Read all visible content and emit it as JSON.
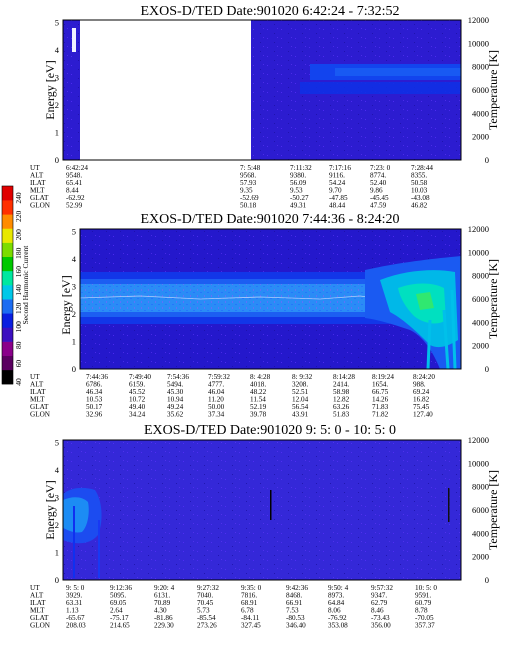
{
  "cb_label": "Second Harmonic Current",
  "cb_ticks": [
    "40",
    "60",
    "80",
    "100",
    "120",
    "140",
    "160",
    "180",
    "200",
    "220",
    "240"
  ],
  "cb_colors": [
    "#000000",
    "#5a0060",
    "#8a008a",
    "#3c10c0",
    "#0a1ee0",
    "#1c6cf2",
    "#00c8e8",
    "#00e8a0",
    "#00c800",
    "#7cdc00",
    "#e8e800",
    "#ff8c00",
    "#ff3000",
    "#e00000"
  ],
  "param_labels": [
    "UT",
    "ALT",
    "ILAT",
    "MLT",
    "GLAT",
    "GLON"
  ],
  "chart_data": [
    {
      "type": "heatmap",
      "title": "EXOS-D/TED   Date:901020  6:42:24 - 7:32:52",
      "ylabel": "Energy [eV]",
      "ylabel2": "Temperature [K]",
      "ylim": [
        0,
        5.1
      ],
      "y2lim": [
        0,
        12000
      ],
      "yticks": [
        "0",
        "1",
        "2",
        "3",
        "4",
        "5"
      ],
      "y2ticks": [
        "0",
        "2000",
        "4000",
        "6000",
        "8000",
        "10000",
        "12000"
      ],
      "bg": "#2c1cd0",
      "data_gap": true,
      "columns": [
        [
          "6:42:24",
          "9548.",
          "65.41",
          "8.44",
          "-62.92",
          "52.99"
        ],
        [
          "7: 5:48",
          "9568.",
          "57.93",
          "9.35",
          "-52.69",
          "50.18"
        ],
        [
          "7:11:32",
          "9380.",
          "56.09",
          "9.53",
          "-50.27",
          "49.31"
        ],
        [
          "7:17:16",
          "9116.",
          "54.24",
          "9.70",
          "-47.85",
          "48.44"
        ],
        [
          "7:23: 0",
          "8774.",
          "52.40",
          "9.86",
          "-45.45",
          "47.59"
        ],
        [
          "7:28:44",
          "8355.",
          "50.58",
          "10.03",
          "-43.08",
          "46.82"
        ]
      ]
    },
    {
      "type": "heatmap",
      "title": "EXOS-D/TED   Date:901020  7:44:36 - 8:24:20",
      "ylabel": "Energy [eV]",
      "ylabel2": "Temperature [K]",
      "ylim": [
        0,
        5.1
      ],
      "y2lim": [
        0,
        12000
      ],
      "yticks": [
        "0",
        "1",
        "2",
        "3",
        "4",
        "5"
      ],
      "y2ticks": [
        "0",
        "2000",
        "4000",
        "6000",
        "8000",
        "10000",
        "12000"
      ],
      "bg": "#2418cc",
      "data_gap": false,
      "columns": [
        [
          "7:44:36",
          "6786.",
          "46.34",
          "10.53",
          "50.17",
          "32.96"
        ],
        [
          "7:49:40",
          "6159.",
          "45.52",
          "10.72",
          "49.40",
          "34.24"
        ],
        [
          "7:54:36",
          "5494.",
          "45.30",
          "10.94",
          "49.24",
          "35.62"
        ],
        [
          "7:59:32",
          "4777.",
          "46.04",
          "11.20",
          "50.00",
          "37.34"
        ],
        [
          "8: 4:28",
          "4018.",
          "48.22",
          "11.54",
          "52.19",
          "39.78"
        ],
        [
          "8: 9:32",
          "3208.",
          "52.51",
          "12.04",
          "56.54",
          "43.91"
        ],
        [
          "8:14:28",
          "2414.",
          "58.98",
          "12.82",
          "63.26",
          "51.83"
        ],
        [
          "8:19:24",
          "1654.",
          "66.75",
          "14.26",
          "71.83",
          "71.82"
        ],
        [
          "8:24:20",
          "988.",
          "69.24",
          "16.82",
          "75.45",
          "127.40"
        ]
      ]
    },
    {
      "type": "heatmap",
      "title": "EXOS-D/TED   Date:901020  9: 5: 0 - 10: 5: 0",
      "ylabel": "Energy [eV]",
      "ylabel2": "Temperature [K]",
      "ylim": [
        0,
        5.1
      ],
      "y2lim": [
        0,
        12000
      ],
      "yticks": [
        "0",
        "1",
        "2",
        "3",
        "4",
        "5"
      ],
      "y2ticks": [
        "0",
        "2000",
        "4000",
        "6000",
        "8000",
        "10000",
        "12000"
      ],
      "bg": "#3428d8",
      "data_gap": false,
      "columns": [
        [
          "9: 5: 0",
          "3929.",
          "63.31",
          "1.13",
          "-65.67",
          "208.03"
        ],
        [
          "9:12:36",
          "5095.",
          "69.05",
          "2.64",
          "-75.17",
          "214.65"
        ],
        [
          "9:20: 4",
          "6131.",
          "70.89",
          "4.30",
          "-81.86",
          "229.30"
        ],
        [
          "9:27:32",
          "7040.",
          "70.45",
          "5.73",
          "-85.54",
          "273.26"
        ],
        [
          "9:35: 0",
          "7816.",
          "68.91",
          "6.78",
          "-84.11",
          "327.45"
        ],
        [
          "9:42:36",
          "8468.",
          "66.91",
          "7.53",
          "-80.53",
          "346.40"
        ],
        [
          "9:50: 4",
          "8973.",
          "64.84",
          "8.06",
          "-76.92",
          "353.08"
        ],
        [
          "9:57:32",
          "9347.",
          "62.79",
          "8.46",
          "-73.43",
          "356.00"
        ],
        [
          "10: 5: 0",
          "9591.",
          "60.79",
          "8.78",
          "-70.05",
          "357.37"
        ]
      ]
    }
  ]
}
